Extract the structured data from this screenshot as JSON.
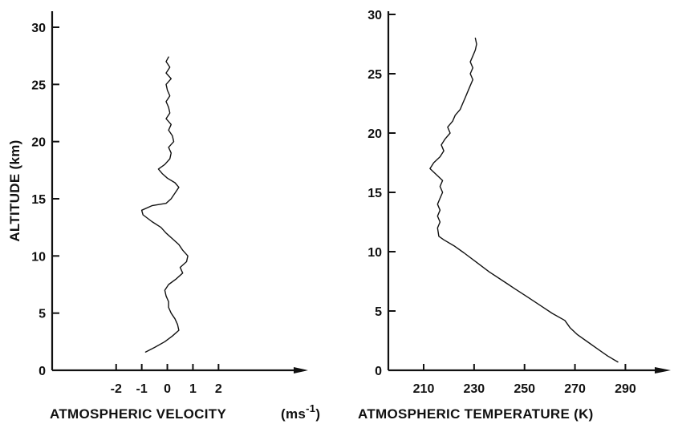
{
  "chart_data": [
    {
      "type": "line",
      "title": "",
      "xlabel": "ATMOSPHERIC VELOCITY",
      "xunit": "(ms",
      "xunit_exp": "-1",
      "xunit_close": ")",
      "ylabel": "ALTITUDE (km)",
      "xlim": [
        -4.5,
        5.5
      ],
      "ylim": [
        0,
        30
      ],
      "xticks": [
        -2,
        -1,
        0,
        1,
        2
      ],
      "xtick_labels": [
        "-2",
        "-1",
        "0",
        "1",
        "2"
      ],
      "yticks": [
        0,
        5,
        10,
        15,
        20,
        25,
        30
      ],
      "ytick_labels": [
        "0",
        "5",
        "10",
        "15",
        "20",
        "25",
        "30"
      ],
      "grid": false,
      "series": [
        {
          "name": "",
          "points": [
            [
              -0.85,
              1.6
            ],
            [
              -0.5,
              2.0
            ],
            [
              -0.1,
              2.5
            ],
            [
              0.2,
              3.0
            ],
            [
              0.45,
              3.5
            ],
            [
              0.4,
              4.0
            ],
            [
              0.3,
              4.5
            ],
            [
              0.15,
              5.0
            ],
            [
              0.05,
              5.5
            ],
            [
              0.05,
              6.0
            ],
            [
              -0.05,
              6.5
            ],
            [
              -0.1,
              7.0
            ],
            [
              0.05,
              7.5
            ],
            [
              0.35,
              8.0
            ],
            [
              0.6,
              8.5
            ],
            [
              0.5,
              9.0
            ],
            [
              0.75,
              9.5
            ],
            [
              0.8,
              10.0
            ],
            [
              0.6,
              10.5
            ],
            [
              0.45,
              11.0
            ],
            [
              0.2,
              11.5
            ],
            [
              -0.05,
              12.0
            ],
            [
              -0.25,
              12.5
            ],
            [
              -0.6,
              13.0
            ],
            [
              -0.95,
              13.6
            ],
            [
              -1.0,
              14.0
            ],
            [
              -0.6,
              14.4
            ],
            [
              -0.05,
              14.6
            ],
            [
              0.15,
              15.0
            ],
            [
              0.3,
              15.5
            ],
            [
              0.45,
              16.0
            ],
            [
              0.3,
              16.4
            ],
            [
              0.0,
              16.8
            ],
            [
              -0.2,
              17.2
            ],
            [
              -0.35,
              17.6
            ],
            [
              -0.1,
              18.0
            ],
            [
              0.1,
              18.5
            ],
            [
              0.15,
              19.0
            ],
            [
              0.05,
              19.5
            ],
            [
              0.25,
              20.0
            ],
            [
              0.2,
              20.5
            ],
            [
              0.05,
              21.0
            ],
            [
              0.15,
              21.5
            ],
            [
              -0.05,
              22.0
            ],
            [
              0.1,
              22.5
            ],
            [
              0.05,
              23.0
            ],
            [
              -0.05,
              23.5
            ],
            [
              0.1,
              24.0
            ],
            [
              0.0,
              24.5
            ],
            [
              -0.05,
              25.0
            ],
            [
              0.15,
              25.5
            ],
            [
              -0.05,
              26.0
            ],
            [
              0.1,
              26.5
            ],
            [
              -0.05,
              27.0
            ],
            [
              0.05,
              27.4
            ]
          ]
        }
      ]
    },
    {
      "type": "line",
      "title": "",
      "xlabel": "ATMOSPHERIC TEMPERATURE (K)",
      "ylabel": "",
      "xlim": [
        196,
        308
      ],
      "ylim": [
        0,
        30
      ],
      "xticks": [
        210,
        230,
        250,
        270,
        290
      ],
      "xtick_labels": [
        "210",
        "230",
        "250",
        "270",
        "290"
      ],
      "yticks": [
        0,
        5,
        10,
        15,
        20,
        25,
        30
      ],
      "ytick_labels": [
        "0",
        "5",
        "10",
        "15",
        "20",
        "25",
        "30"
      ],
      "grid": false,
      "series": [
        {
          "name": "",
          "points": [
            [
              287,
              0.7
            ],
            [
              283,
              1.2
            ],
            [
              279,
              1.8
            ],
            [
              275,
              2.4
            ],
            [
              271,
              3.0
            ],
            [
              268,
              3.6
            ],
            [
              266,
              4.2
            ],
            [
              261,
              4.8
            ],
            [
              256,
              5.5
            ],
            [
              251,
              6.2
            ],
            [
              246,
              6.9
            ],
            [
              241,
              7.6
            ],
            [
              236,
              8.3
            ],
            [
              231,
              9.1
            ],
            [
              226,
              9.9
            ],
            [
              222,
              10.5
            ],
            [
              218,
              11.0
            ],
            [
              216,
              11.3
            ],
            [
              215.5,
              12.0
            ],
            [
              216.5,
              12.5
            ],
            [
              215.5,
              13.0
            ],
            [
              216.5,
              13.5
            ],
            [
              215.5,
              14.0
            ],
            [
              216.5,
              14.5
            ],
            [
              217.5,
              15.0
            ],
            [
              216.5,
              15.5
            ],
            [
              217.5,
              16.0
            ],
            [
              215,
              16.5
            ],
            [
              212.5,
              17.0
            ],
            [
              214,
              17.5
            ],
            [
              216.5,
              18.0
            ],
            [
              218,
              18.5
            ],
            [
              217,
              19.0
            ],
            [
              218.5,
              19.5
            ],
            [
              220.5,
              20.0
            ],
            [
              219.5,
              20.5
            ],
            [
              221.5,
              21.0
            ],
            [
              222.5,
              21.5
            ],
            [
              224.5,
              22.0
            ],
            [
              225.5,
              22.5
            ],
            [
              226.5,
              23.0
            ],
            [
              227.5,
              23.5
            ],
            [
              228.5,
              24.0
            ],
            [
              229.5,
              24.5
            ],
            [
              228.5,
              25.0
            ],
            [
              229.5,
              25.5
            ],
            [
              228.5,
              26.0
            ],
            [
              229.5,
              26.5
            ],
            [
              230.5,
              27.0
            ],
            [
              231,
              27.5
            ],
            [
              230.5,
              28.0
            ]
          ]
        }
      ]
    }
  ]
}
